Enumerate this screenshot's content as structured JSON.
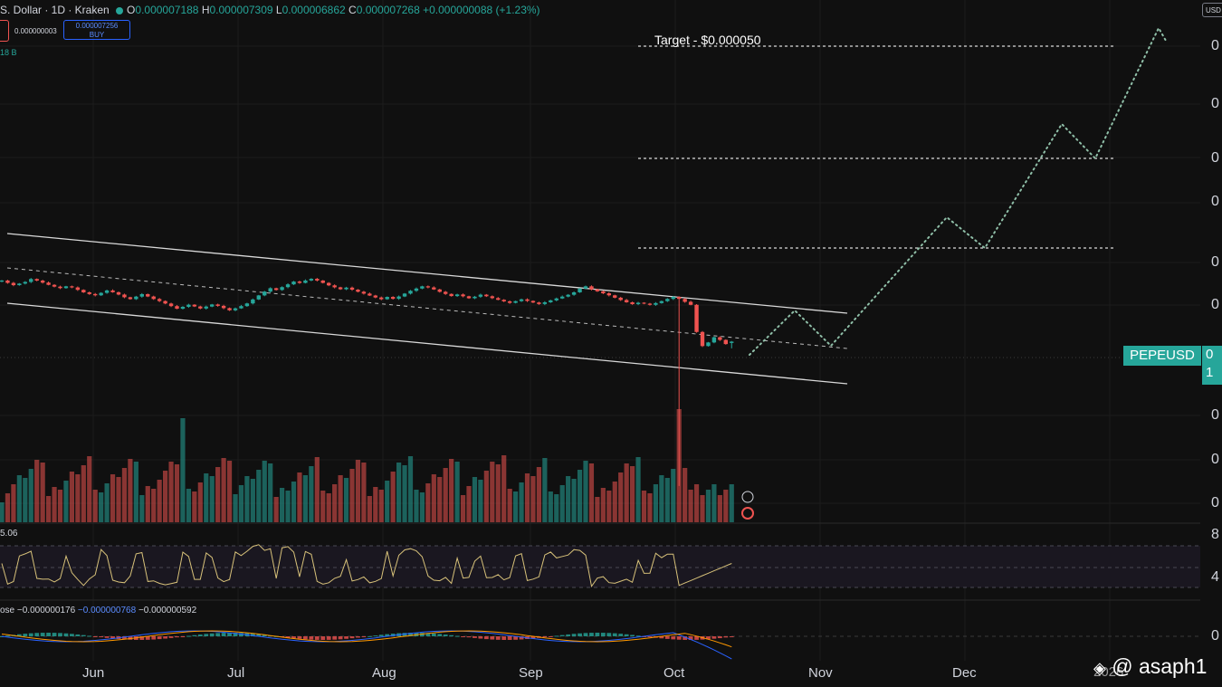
{
  "header": {
    "symbol": "S. Dollar · 1D · Kraken",
    "o_label": "O",
    "o": "0.000007188",
    "h_label": "H",
    "h": "0.000007309",
    "l_label": "L",
    "l": "0.000006862",
    "c_label": "C",
    "c": "0.000007268",
    "change": "+0.000000088 (+1.23%)",
    "spread": "0.000000003",
    "buy_price": "0.000007256",
    "buy_label": "BUY",
    "volume_value": "18 B",
    "currency": "USD"
  },
  "price_scale_ticks": [
    "0",
    "0",
    "0",
    "0",
    "0",
    "0",
    "0",
    "0",
    "0"
  ],
  "rsi_scale_ticks": [
    "8",
    "4"
  ],
  "macd_scale_ticks": [
    "0"
  ],
  "symbol_tag": "PEPEUSD",
  "price_tag": [
    "0",
    "1"
  ],
  "rsi_label": "5.06",
  "macd_label": {
    "name": "ose",
    "v1": "−0.000000176",
    "v2": "−0.000000768",
    "v3": "−0.000000592"
  },
  "target_label": "Target - $0.000050",
  "watermark": {
    "year": "2026",
    "handle": "@ asaph1"
  },
  "colors": {
    "up": "#26a69a",
    "down": "#ef5350",
    "rsi": "#d8c27a",
    "macd": "#2962ff",
    "signal": "#ff9800",
    "bg": "#101010"
  },
  "chart_data": {
    "type": "candlestick",
    "title": "",
    "symbol": "PEPEUSD",
    "timeframe": "1D",
    "exchange": "Kraken",
    "x_labels": [
      "Jun",
      "Jul",
      "Aug",
      "Sep",
      "Oct",
      "Nov",
      "Dec",
      "2026"
    ],
    "target": 5e-05,
    "last_bar": {
      "open": 7.188e-06,
      "high": 7.309e-06,
      "low": 6.862e-06,
      "close": 7.268e-06
    },
    "grid": true,
    "legend": "none",
    "closes": [
      1.23e-05,
      1.205e-05,
      1.182e-05,
      1.198e-05,
      1.215e-05,
      1.246e-05,
      1.229e-05,
      1.208e-05,
      1.185e-05,
      1.167e-05,
      1.152e-05,
      1.17e-05,
      1.159e-05,
      1.135e-05,
      1.111e-05,
      1.095e-05,
      1.083e-05,
      1.106e-05,
      1.129e-05,
      1.112e-05,
      1.09e-05,
      1.065e-05,
      1.048e-05,
      1.071e-05,
      1.094e-05,
      1.072e-05,
      1.049e-05,
      1.031e-05,
      1.009e-05,
      9.87e-06,
      9.65e-06,
      9.81e-06,
      9.99e-06,
      9.84e-06,
      9.67e-06,
      9.83e-06,
      1.001e-05,
      9.89e-06,
      9.7e-06,
      9.52e-06,
      9.68e-06,
      9.87e-06,
      1.01e-05,
      1.045e-05,
      1.082e-05,
      1.118e-05,
      1.151e-05,
      1.134e-05,
      1.162e-05,
      1.19e-05,
      1.219e-05,
      1.205e-05,
      1.23e-05,
      1.248e-05,
      1.23e-05,
      1.205e-05,
      1.18e-05,
      1.16e-05,
      1.141e-05,
      1.157e-05,
      1.137e-05,
      1.117e-05,
      1.099e-05,
      1.081e-05,
      1.063e-05,
      1.047e-05,
      1.068e-05,
      1.051e-05,
      1.072e-05,
      1.099e-05,
      1.126e-05,
      1.148e-05,
      1.17e-05,
      1.159e-05,
      1.139e-05,
      1.116e-05,
      1.096e-05,
      1.076e-05,
      1.091e-05,
      1.074e-05,
      1.056e-05,
      1.07e-05,
      1.089e-05,
      1.074e-05,
      1.057e-05,
      1.042e-05,
      1.028e-05,
      1.015e-05,
      1.03e-05,
      1.046e-05,
      1.032e-05,
      1.018e-05,
      1.005e-05,
      1.02e-05,
      1.037e-05,
      1.054e-05,
      1.071e-05,
      1.088e-05,
      1.111e-05,
      1.148e-05,
      1.17e-05,
      1.14e-05,
      1.121e-05,
      1.102e-05,
      1.083e-05,
      1.061e-05,
      1.04e-05,
      1.02e-05,
      1.004e-05,
      1.016e-05,
      1.008e-05,
      9.98e-06,
      1.013e-05,
      1.03e-05,
      1.05e-05,
      1.068e-05,
      1.05e-05,
      1.024e-05,
      9.98e-06,
      7.9e-06,
      7e-06,
      7.22e-06,
      7.55e-06,
      7.38e-06,
      7.12e-06,
      7.27e-06
    ]
  }
}
